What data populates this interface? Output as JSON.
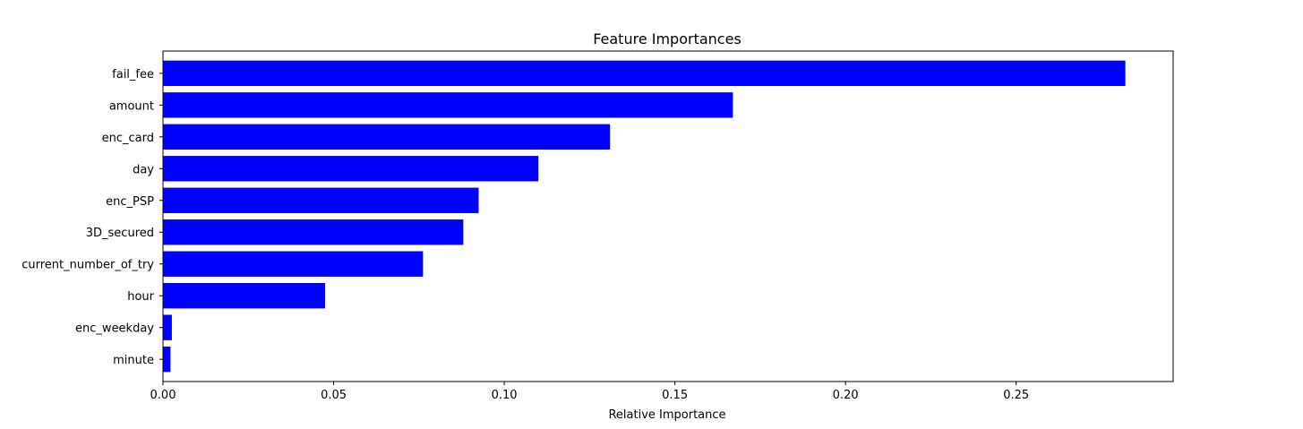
{
  "chart_data": {
    "type": "bar",
    "orientation": "horizontal",
    "title": "Feature Importances",
    "xlabel": "Relative Importance",
    "ylabel": "",
    "categories": [
      "fail_fee",
      "amount",
      "enc_card",
      "day",
      "enc_PSP",
      "3D_secured",
      "current_number_of_try",
      "hour",
      "enc_weekday",
      "minute"
    ],
    "values": [
      0.282,
      0.167,
      0.131,
      0.11,
      0.0925,
      0.088,
      0.0762,
      0.0475,
      0.0026,
      0.0022
    ],
    "xlim": [
      0,
      0.296
    ],
    "xticks": [
      0.0,
      0.05,
      0.1,
      0.15,
      0.2,
      0.25
    ],
    "xtick_labels": [
      "0.00",
      "0.05",
      "0.10",
      "0.15",
      "0.20",
      "0.25"
    ],
    "bar_color": "#0000ff",
    "grid": false
  }
}
